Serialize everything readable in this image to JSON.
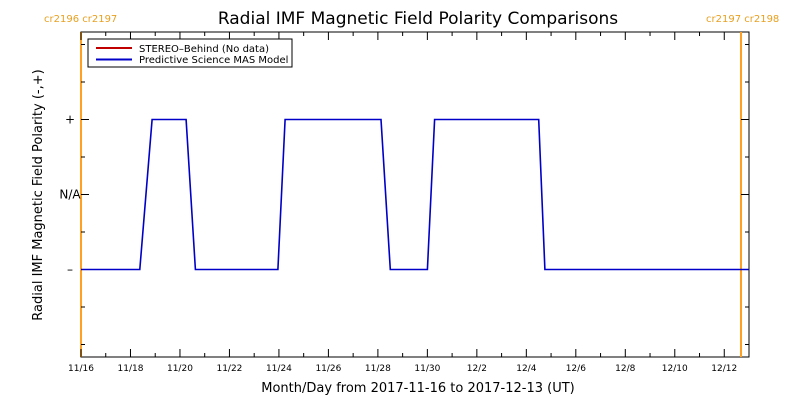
{
  "chart_data": {
    "type": "line",
    "title": "Radial IMF Magnetic Field Polarity Comparisons",
    "xlabel": "Month/Day from 2017-11-16 to 2017-12-13 (UT)",
    "ylabel": "Radial IMF Magnetic Field Polarity (-,+)",
    "x_ticks": [
      "11/16",
      "11/18",
      "11/20",
      "11/22",
      "11/24",
      "11/26",
      "11/28",
      "11/30",
      "12/2",
      "12/4",
      "12/6",
      "12/8",
      "12/10",
      "12/12"
    ],
    "y_ticks": [
      "+",
      "N/A",
      "–"
    ],
    "carrington_labels": {
      "left": "cr2196 cr2197",
      "right": "cr2197 cr2198"
    },
    "series": [
      {
        "name": "STEREO–Behind (No data)",
        "color": "#c00000",
        "x": [],
        "y": []
      },
      {
        "name": "Predictive Science MAS Model",
        "color": "#0000c8",
        "x": [
          "11/16 00:00",
          "11/18 09:00",
          "11/18 21:00",
          "11/20 06:00",
          "11/20 15:00",
          "11/23 23:00",
          "11/24 06:00",
          "11/28 03:00",
          "11/28 12:00",
          "11/30 00:00",
          "11/30 07:00",
          "12/4 12:00",
          "12/4 18:00",
          "12/13 00:00"
        ],
        "y": [
          "-",
          "-",
          "+",
          "+",
          "-",
          "-",
          "+",
          "+",
          "-",
          "-",
          "+",
          "+",
          "-",
          "-"
        ]
      }
    ],
    "legend_position": "top-left",
    "grid": false
  }
}
